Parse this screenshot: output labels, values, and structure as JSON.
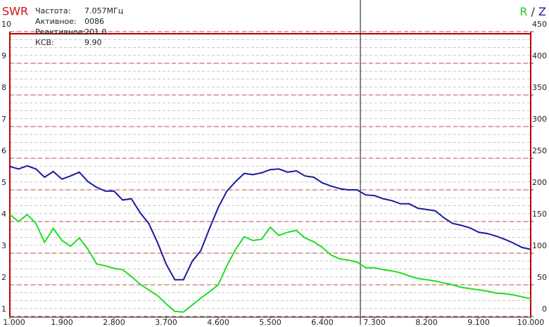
{
  "chart_data": {
    "type": "line",
    "title": "SWR",
    "title_color": "#d01010",
    "y2_title_parts": [
      {
        "text": "R",
        "color": "#22cc22"
      },
      {
        "text": "/",
        "color": "#333333"
      },
      {
        "text": "Z",
        "color": "#1a1aa0"
      }
    ],
    "readouts": [
      {
        "label": "Частота:",
        "value": "7.057МГц"
      },
      {
        "label": "Активное:",
        "value": "0086"
      },
      {
        "label": "Реактивное:",
        "value": "201.0"
      },
      {
        "label": "КСВ:",
        "value": "9.90"
      }
    ],
    "cursor": 7.057,
    "xlim": [
      1,
      10
    ],
    "xticks": [
      {
        "value": 1,
        "label": "1.000"
      },
      {
        "value": 1.9,
        "label": "1.900"
      },
      {
        "value": 2.8,
        "label": "2.800"
      },
      {
        "value": 3.7,
        "label": "3.700"
      },
      {
        "value": 4.6,
        "label": "4.600"
      },
      {
        "value": 5.5,
        "label": "5.500"
      },
      {
        "value": 6.4,
        "label": "6.400"
      },
      {
        "value": 7.3,
        "label": "7.300"
      },
      {
        "value": 8.2,
        "label": "8.200"
      },
      {
        "value": 9.1,
        "label": "9.100"
      },
      {
        "value": 10,
        "label": "10.000"
      }
    ],
    "ylim": [
      1,
      10
    ],
    "yticks": [
      1,
      2,
      3,
      4,
      5,
      6,
      7,
      8,
      9,
      10
    ],
    "y2lim": [
      0,
      450
    ],
    "y2ticks": [
      0,
      50,
      100,
      150,
      200,
      250,
      300,
      350,
      400,
      450
    ],
    "grid": true,
    "x": [
      1.0,
      1.15,
      1.3,
      1.45,
      1.6,
      1.75,
      1.9,
      2.05,
      2.2,
      2.35,
      2.5,
      2.65,
      2.8,
      2.95,
      3.1,
      3.25,
      3.4,
      3.55,
      3.7,
      3.85,
      4.0,
      4.15,
      4.3,
      4.45,
      4.6,
      4.75,
      4.9,
      5.05,
      5.2,
      5.35,
      5.5,
      5.65,
      5.8,
      5.95,
      6.1,
      6.25,
      6.4,
      6.55,
      6.7,
      6.85,
      7.0,
      7.15,
      7.3,
      7.45,
      7.6,
      7.75,
      7.9,
      8.05,
      8.2,
      8.35,
      8.5,
      8.65,
      8.8,
      8.95,
      9.1,
      9.25,
      9.4,
      9.55,
      9.7,
      9.85,
      10.0
    ],
    "series": [
      {
        "name": "Z",
        "color": "#1a1aa0",
        "axis": "y2",
        "values": [
          237,
          233,
          238,
          233,
          220,
          229,
          217,
          222,
          228,
          213,
          204,
          198,
          198,
          184,
          186,
          164,
          147,
          117,
          83,
          58,
          58,
          87,
          104,
          139,
          172,
          198,
          213,
          226,
          224,
          227,
          232,
          233,
          228,
          230,
          222,
          220,
          211,
          206,
          202,
          200,
          200,
          192,
          191,
          186,
          183,
          178,
          178,
          171,
          169,
          167,
          156,
          147,
          144,
          140,
          133,
          131,
          127,
          122,
          116,
          109,
          106
        ]
      },
      {
        "name": "R",
        "color": "#22dd22",
        "axis": "y2",
        "values": [
          161,
          150,
          161,
          147,
          117,
          139,
          120,
          111,
          124,
          106,
          83,
          80,
          76,
          74,
          63,
          51,
          42,
          33,
          20,
          8,
          7,
          18,
          29,
          39,
          50,
          80,
          106,
          126,
          120,
          122,
          141,
          128,
          133,
          136,
          124,
          118,
          109,
          97,
          91,
          89,
          86,
          77,
          77,
          74,
          72,
          69,
          64,
          60,
          58,
          56,
          53,
          50,
          46,
          44,
          42,
          40,
          37,
          36,
          34,
          31,
          28
        ]
      }
    ]
  }
}
